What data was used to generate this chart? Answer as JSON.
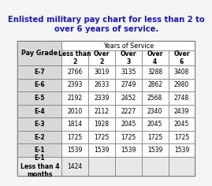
{
  "title": "Enlisted military pay chart for less than 2 to\nover 6 years of service.",
  "title_color": "#1a1acd",
  "page_bg": "#f5f5f5",
  "table_bg": "#ffffff",
  "header_bg": "#d8d8d8",
  "last_row_bg": "#e8e8e8",
  "header1": "Pay Grade",
  "header2": "Years of Service",
  "col_headers": [
    "Less than\n2",
    "Over\n2",
    "Over\n3",
    "Over\n4",
    "Over\n6"
  ],
  "rows": [
    [
      "E-7",
      "2766",
      "3019",
      "3135",
      "3288",
      "3408"
    ],
    [
      "E-6",
      "2393",
      "2633",
      "2749",
      "2862",
      "2980"
    ],
    [
      "E-5",
      "2192",
      "2339",
      "2452",
      "2568",
      "2748"
    ],
    [
      "E-4",
      "2010",
      "2112",
      "2227",
      "2340",
      "2439"
    ],
    [
      "E-3",
      "1814",
      "1928",
      "2045",
      "2045",
      "2045"
    ],
    [
      "E-2",
      "1725",
      "1725",
      "1725",
      "1725",
      "1725"
    ],
    [
      "E-1",
      "1539",
      "1539",
      "1539",
      "1539",
      "1539"
    ],
    [
      "E-1\nLess than 4\nmonths",
      "1424",
      "",
      "",
      "",
      ""
    ]
  ],
  "font_size_title": 7.2,
  "font_size_header": 5.8,
  "font_size_cell": 5.5
}
